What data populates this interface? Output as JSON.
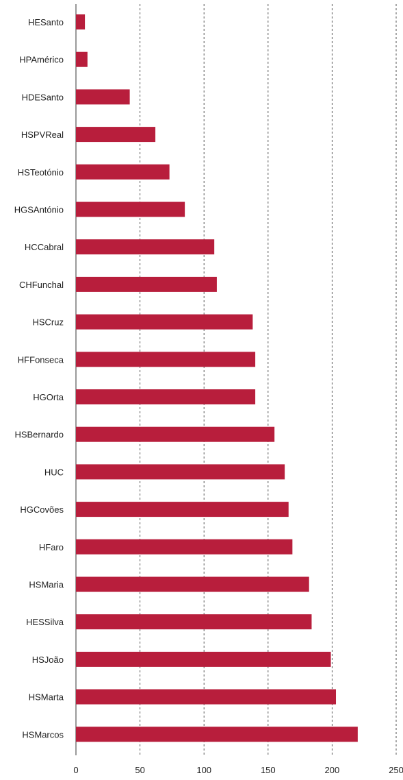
{
  "chart_data": {
    "type": "bar",
    "orientation": "horizontal",
    "title": "",
    "xlabel": "",
    "ylabel": "",
    "xlim": [
      0,
      250
    ],
    "x_ticks": [
      0,
      50,
      100,
      150,
      200,
      250
    ],
    "grid": "vertical dashed",
    "legend": "none",
    "bar_color": "#b81e3c",
    "categories": [
      "HESanto",
      "HPAmérico",
      "HDESanto",
      "HSPVReal",
      "HSTeotónio",
      "HGSAntónio",
      "HCCabral",
      "CHFunchal",
      "HSCruz",
      "HFFonseca",
      "HGOrta",
      "HSBernardo",
      "HUC",
      "HGCovões",
      "HFaro",
      "HSMaria",
      "HESSilva",
      "HSJoão",
      "HSMarta",
      "HSMarcos"
    ],
    "values": [
      7,
      9,
      42,
      62,
      73,
      85,
      108,
      110,
      138,
      140,
      140,
      155,
      163,
      166,
      169,
      182,
      184,
      199,
      203,
      220
    ]
  }
}
